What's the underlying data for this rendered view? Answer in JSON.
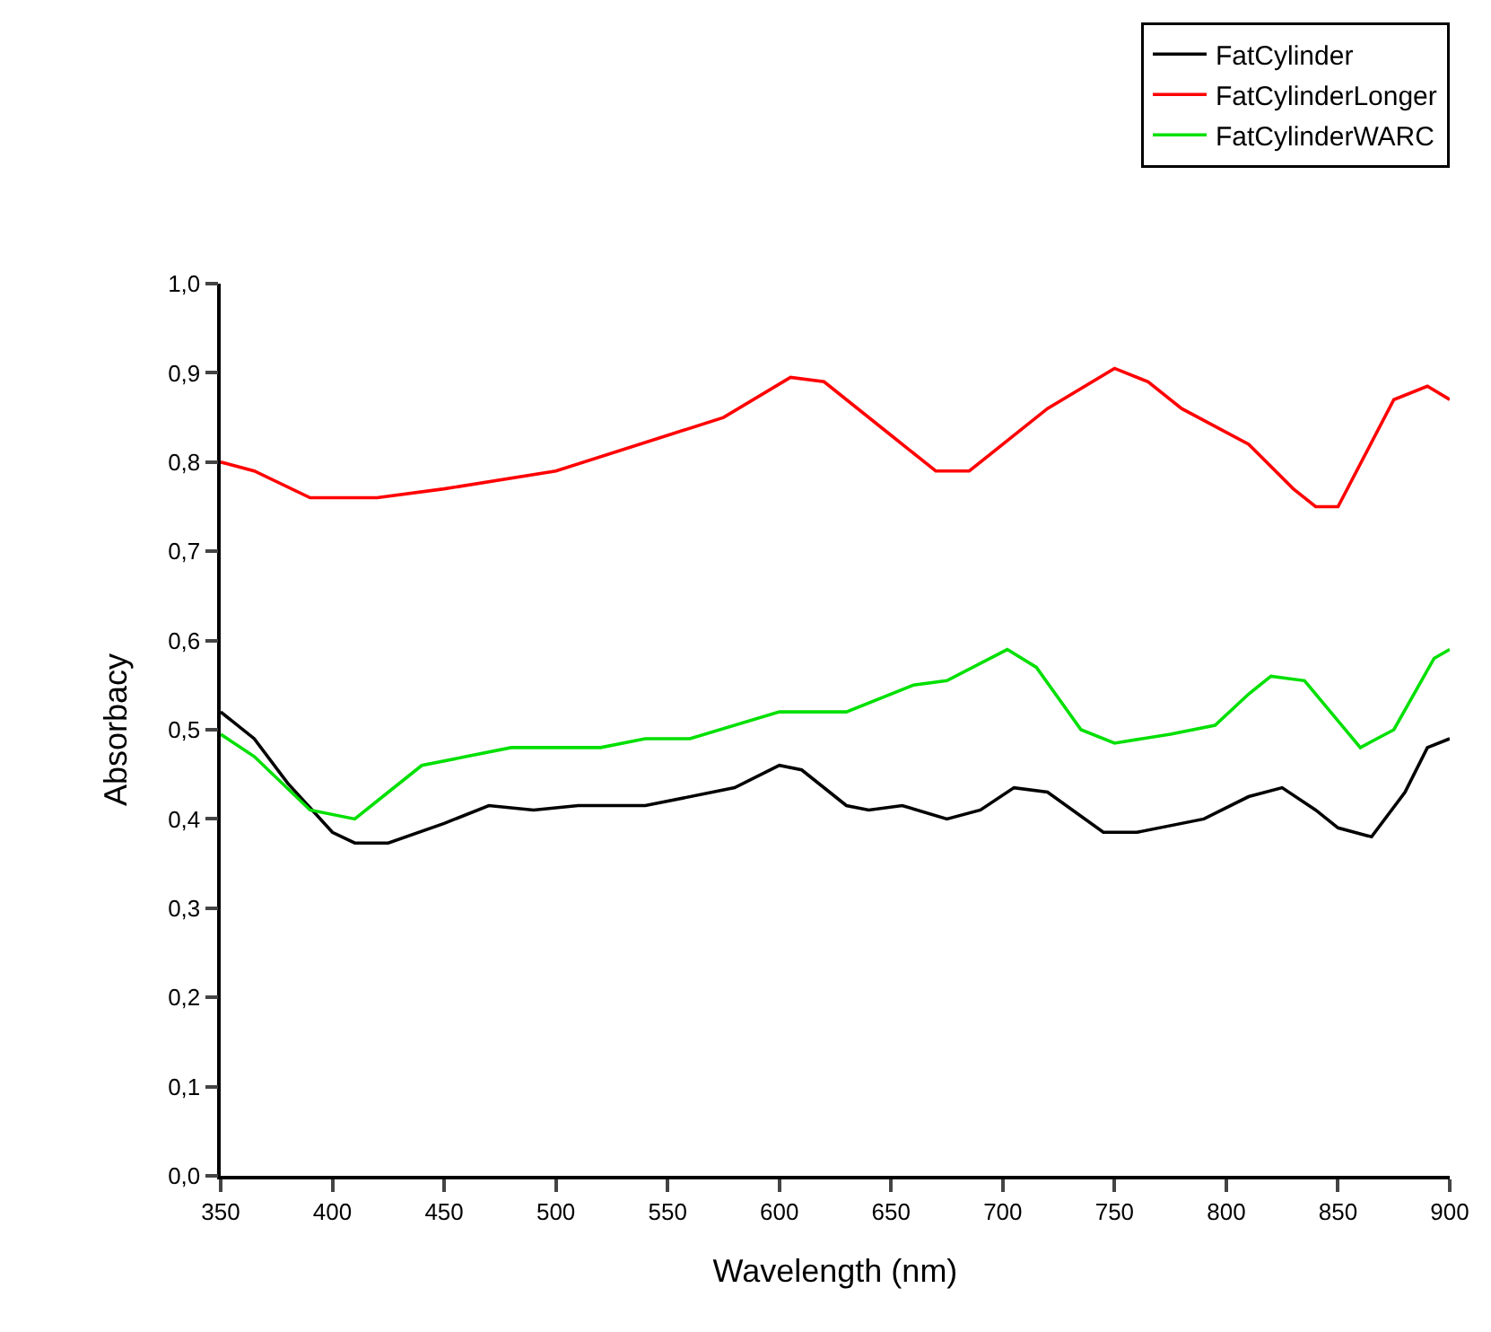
{
  "chart_data": {
    "type": "line",
    "xlabel": "Wavelength (nm)",
    "ylabel": "Absorbacy",
    "xlim": [
      350,
      900
    ],
    "xticks": [
      350,
      400,
      450,
      500,
      550,
      600,
      650,
      700,
      750,
      800,
      850,
      900
    ],
    "ylim": [
      0,
      1
    ],
    "yticks": [
      {
        "value": 0,
        "label": "0,0"
      },
      {
        "value": 0.1,
        "label": "0,1"
      },
      {
        "value": 0.2,
        "label": "0,2"
      },
      {
        "value": 0.3,
        "label": "0,3"
      },
      {
        "value": 0.4,
        "label": "0,4"
      },
      {
        "value": 0.5,
        "label": "0,5"
      },
      {
        "value": 0.6,
        "label": "0,6"
      },
      {
        "value": 0.7,
        "label": "0,7"
      },
      {
        "value": 0.8,
        "label": "0,8"
      },
      {
        "value": 0.9,
        "label": "0,9"
      },
      {
        "value": 1,
        "label": "1,0"
      }
    ],
    "grid": false,
    "legend": "top right",
    "marker": "none",
    "line_style": "solid",
    "series": [
      {
        "name": "FatCylinder",
        "color": "#000000",
        "x": [
          350,
          365,
          380,
          400,
          410,
          425,
          450,
          470,
          490,
          510,
          540,
          580,
          600,
          610,
          630,
          640,
          655,
          675,
          690,
          705,
          720,
          745,
          760,
          790,
          810,
          825,
          840,
          850,
          865,
          880,
          890,
          900
        ],
        "values": [
          0.52,
          0.49,
          0.44,
          0.385,
          0.373,
          0.373,
          0.395,
          0.415,
          0.41,
          0.415,
          0.415,
          0.435,
          0.46,
          0.455,
          0.415,
          0.41,
          0.415,
          0.4,
          0.41,
          0.435,
          0.43,
          0.385,
          0.385,
          0.4,
          0.425,
          0.435,
          0.41,
          0.39,
          0.38,
          0.43,
          0.48,
          0.49
        ]
      },
      {
        "name": "FatCylinderLonger",
        "color": "#ff0000",
        "x": [
          350,
          365,
          390,
          420,
          450,
          500,
          550,
          575,
          605,
          620,
          650,
          670,
          685,
          720,
          750,
          765,
          780,
          810,
          830,
          840,
          850,
          875,
          890,
          900
        ],
        "values": [
          0.8,
          0.79,
          0.76,
          0.76,
          0.77,
          0.79,
          0.83,
          0.85,
          0.895,
          0.89,
          0.83,
          0.79,
          0.79,
          0.86,
          0.905,
          0.89,
          0.86,
          0.82,
          0.77,
          0.75,
          0.75,
          0.87,
          0.885,
          0.87
        ]
      },
      {
        "name": "FatCylinderWARC",
        "color": "#00e000",
        "x": [
          350,
          365,
          390,
          410,
          420,
          440,
          460,
          480,
          520,
          540,
          560,
          600,
          630,
          660,
          675,
          702,
          715,
          735,
          750,
          775,
          795,
          810,
          820,
          835,
          850,
          860,
          875,
          893,
          900
        ],
        "values": [
          0.495,
          0.47,
          0.41,
          0.4,
          0.42,
          0.46,
          0.47,
          0.48,
          0.48,
          0.49,
          0.49,
          0.52,
          0.52,
          0.55,
          0.555,
          0.59,
          0.57,
          0.5,
          0.485,
          0.495,
          0.505,
          0.54,
          0.56,
          0.555,
          0.51,
          0.48,
          0.5,
          0.58,
          0.59
        ]
      }
    ]
  }
}
